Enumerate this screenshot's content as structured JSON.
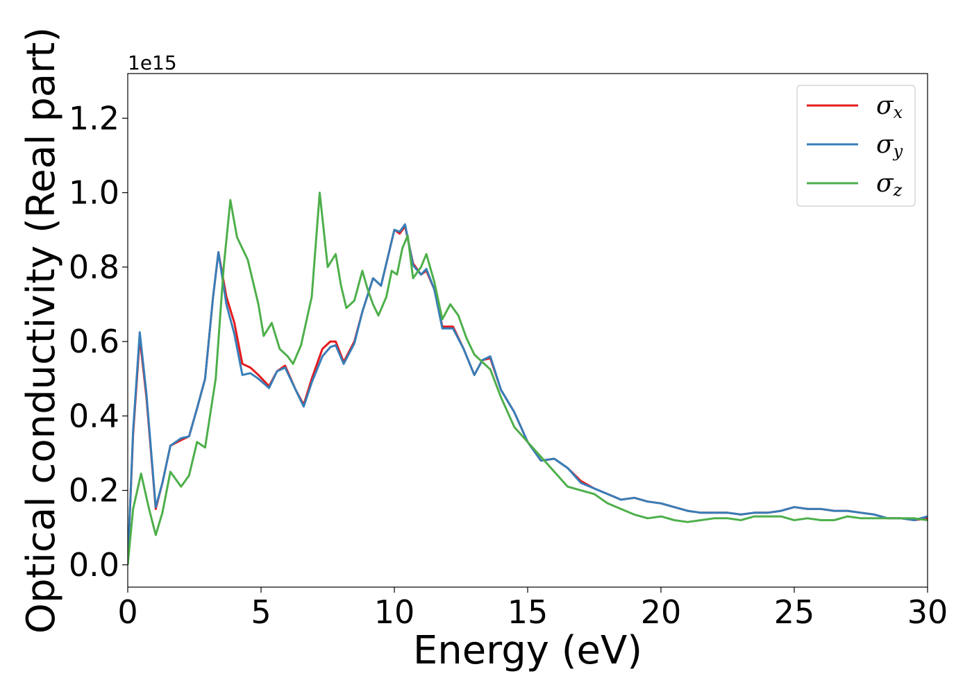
{
  "chart_data": {
    "type": "line",
    "title": "",
    "xlabel": "Energy (eV)",
    "ylabel": "Optical conductivity (Real part)",
    "y_offset_label": "1e15",
    "xlim": [
      0,
      30
    ],
    "ylim": [
      -0.06,
      1.32
    ],
    "xticks": [
      0,
      5,
      10,
      15,
      20,
      25,
      30
    ],
    "xtick_labels": [
      "0",
      "5",
      "10",
      "15",
      "20",
      "25",
      "30"
    ],
    "yticks": [
      0.0,
      0.2,
      0.4,
      0.6,
      0.8,
      1.0,
      1.2
    ],
    "ytick_labels": [
      "0.0",
      "0.2",
      "0.4",
      "0.6",
      "0.8",
      "1.0",
      "1.2"
    ],
    "grid": false,
    "legend_position": "top-right",
    "series": [
      {
        "name": "σx",
        "legend_symbol": "σ",
        "legend_sub": "x",
        "color": "#e41a1c",
        "points": [
          [
            0,
            0.0
          ],
          [
            0.2,
            0.35
          ],
          [
            0.45,
            0.61
          ],
          [
            0.7,
            0.45
          ],
          [
            1.05,
            0.15
          ],
          [
            1.3,
            0.22
          ],
          [
            1.6,
            0.32
          ],
          [
            2.0,
            0.335
          ],
          [
            2.3,
            0.345
          ],
          [
            2.6,
            0.42
          ],
          [
            2.9,
            0.5
          ],
          [
            3.2,
            0.72
          ],
          [
            3.4,
            0.84
          ],
          [
            3.7,
            0.72
          ],
          [
            4.0,
            0.65
          ],
          [
            4.3,
            0.54
          ],
          [
            4.6,
            0.53
          ],
          [
            4.9,
            0.51
          ],
          [
            5.3,
            0.48
          ],
          [
            5.6,
            0.52
          ],
          [
            5.9,
            0.535
          ],
          [
            6.3,
            0.47
          ],
          [
            6.6,
            0.43
          ],
          [
            6.9,
            0.5
          ],
          [
            7.3,
            0.58
          ],
          [
            7.6,
            0.6
          ],
          [
            7.8,
            0.6
          ],
          [
            8.1,
            0.545
          ],
          [
            8.5,
            0.6
          ],
          [
            8.8,
            0.68
          ],
          [
            9.2,
            0.77
          ],
          [
            9.5,
            0.75
          ],
          [
            10.0,
            0.9
          ],
          [
            10.2,
            0.89
          ],
          [
            10.4,
            0.91
          ],
          [
            10.7,
            0.81
          ],
          [
            11.0,
            0.78
          ],
          [
            11.2,
            0.79
          ],
          [
            11.5,
            0.74
          ],
          [
            11.8,
            0.64
          ],
          [
            12.2,
            0.64
          ],
          [
            12.6,
            0.58
          ],
          [
            13.0,
            0.51
          ],
          [
            13.3,
            0.55
          ],
          [
            13.6,
            0.555
          ],
          [
            14.0,
            0.47
          ],
          [
            14.5,
            0.41
          ],
          [
            15.0,
            0.33
          ],
          [
            15.5,
            0.28
          ],
          [
            16.0,
            0.285
          ],
          [
            16.5,
            0.26
          ],
          [
            17.0,
            0.225
          ],
          [
            17.5,
            0.205
          ],
          [
            18.0,
            0.19
          ],
          [
            18.5,
            0.175
          ],
          [
            19.0,
            0.18
          ],
          [
            19.5,
            0.17
          ],
          [
            20.0,
            0.165
          ],
          [
            20.5,
            0.155
          ],
          [
            21.0,
            0.145
          ],
          [
            21.5,
            0.14
          ],
          [
            22.0,
            0.14
          ],
          [
            22.5,
            0.14
          ],
          [
            23.0,
            0.135
          ],
          [
            23.5,
            0.14
          ],
          [
            24.0,
            0.14
          ],
          [
            24.5,
            0.145
          ],
          [
            25.0,
            0.155
          ],
          [
            25.5,
            0.15
          ],
          [
            26.0,
            0.15
          ],
          [
            26.5,
            0.145
          ],
          [
            27.0,
            0.145
          ],
          [
            27.5,
            0.14
          ],
          [
            28.0,
            0.135
          ],
          [
            28.5,
            0.125
          ],
          [
            29.0,
            0.125
          ],
          [
            29.5,
            0.12
          ],
          [
            30.0,
            0.125
          ]
        ]
      },
      {
        "name": "σy",
        "legend_symbol": "σ",
        "legend_sub": "y",
        "color": "#377eb8",
        "points": [
          [
            0,
            0.0
          ],
          [
            0.2,
            0.36
          ],
          [
            0.45,
            0.625
          ],
          [
            0.7,
            0.46
          ],
          [
            1.05,
            0.155
          ],
          [
            1.3,
            0.22
          ],
          [
            1.6,
            0.32
          ],
          [
            2.0,
            0.34
          ],
          [
            2.3,
            0.345
          ],
          [
            2.6,
            0.42
          ],
          [
            2.9,
            0.5
          ],
          [
            3.2,
            0.72
          ],
          [
            3.4,
            0.84
          ],
          [
            3.7,
            0.7
          ],
          [
            4.0,
            0.62
          ],
          [
            4.3,
            0.51
          ],
          [
            4.6,
            0.515
          ],
          [
            4.9,
            0.5
          ],
          [
            5.3,
            0.475
          ],
          [
            5.6,
            0.52
          ],
          [
            5.9,
            0.53
          ],
          [
            6.3,
            0.47
          ],
          [
            6.6,
            0.425
          ],
          [
            6.9,
            0.49
          ],
          [
            7.3,
            0.56
          ],
          [
            7.6,
            0.585
          ],
          [
            7.8,
            0.59
          ],
          [
            8.1,
            0.54
          ],
          [
            8.5,
            0.595
          ],
          [
            8.8,
            0.68
          ],
          [
            9.2,
            0.77
          ],
          [
            9.5,
            0.75
          ],
          [
            10.0,
            0.9
          ],
          [
            10.2,
            0.895
          ],
          [
            10.4,
            0.915
          ],
          [
            10.7,
            0.805
          ],
          [
            11.0,
            0.78
          ],
          [
            11.2,
            0.795
          ],
          [
            11.5,
            0.74
          ],
          [
            11.8,
            0.635
          ],
          [
            12.2,
            0.635
          ],
          [
            12.6,
            0.58
          ],
          [
            13.0,
            0.51
          ],
          [
            13.3,
            0.55
          ],
          [
            13.6,
            0.56
          ],
          [
            14.0,
            0.47
          ],
          [
            14.5,
            0.41
          ],
          [
            15.0,
            0.33
          ],
          [
            15.5,
            0.28
          ],
          [
            16.0,
            0.285
          ],
          [
            16.5,
            0.26
          ],
          [
            17.0,
            0.22
          ],
          [
            17.5,
            0.205
          ],
          [
            18.0,
            0.19
          ],
          [
            18.5,
            0.175
          ],
          [
            19.0,
            0.18
          ],
          [
            19.5,
            0.17
          ],
          [
            20.0,
            0.165
          ],
          [
            20.5,
            0.155
          ],
          [
            21.0,
            0.145
          ],
          [
            21.5,
            0.14
          ],
          [
            22.0,
            0.14
          ],
          [
            22.5,
            0.14
          ],
          [
            23.0,
            0.135
          ],
          [
            23.5,
            0.14
          ],
          [
            24.0,
            0.14
          ],
          [
            24.5,
            0.145
          ],
          [
            25.0,
            0.155
          ],
          [
            25.5,
            0.15
          ],
          [
            26.0,
            0.15
          ],
          [
            26.5,
            0.145
          ],
          [
            27.0,
            0.145
          ],
          [
            27.5,
            0.14
          ],
          [
            28.0,
            0.135
          ],
          [
            28.5,
            0.125
          ],
          [
            29.0,
            0.125
          ],
          [
            29.5,
            0.12
          ],
          [
            30.0,
            0.13
          ]
        ]
      },
      {
        "name": "σz",
        "legend_symbol": "σ",
        "legend_sub": "z",
        "color": "#4daf4a",
        "points": [
          [
            0,
            0.0
          ],
          [
            0.2,
            0.15
          ],
          [
            0.5,
            0.245
          ],
          [
            0.8,
            0.15
          ],
          [
            1.05,
            0.08
          ],
          [
            1.3,
            0.14
          ],
          [
            1.6,
            0.25
          ],
          [
            2.0,
            0.21
          ],
          [
            2.3,
            0.24
          ],
          [
            2.6,
            0.33
          ],
          [
            2.9,
            0.315
          ],
          [
            3.3,
            0.5
          ],
          [
            3.6,
            0.8
          ],
          [
            3.85,
            0.98
          ],
          [
            4.1,
            0.88
          ],
          [
            4.5,
            0.82
          ],
          [
            4.9,
            0.7
          ],
          [
            5.1,
            0.615
          ],
          [
            5.4,
            0.65
          ],
          [
            5.7,
            0.58
          ],
          [
            6.0,
            0.56
          ],
          [
            6.2,
            0.54
          ],
          [
            6.5,
            0.59
          ],
          [
            6.9,
            0.72
          ],
          [
            7.2,
            1.0
          ],
          [
            7.5,
            0.8
          ],
          [
            7.8,
            0.835
          ],
          [
            8.0,
            0.75
          ],
          [
            8.2,
            0.69
          ],
          [
            8.5,
            0.71
          ],
          [
            8.8,
            0.79
          ],
          [
            9.0,
            0.74
          ],
          [
            9.2,
            0.7
          ],
          [
            9.4,
            0.67
          ],
          [
            9.7,
            0.72
          ],
          [
            9.9,
            0.79
          ],
          [
            10.1,
            0.78
          ],
          [
            10.3,
            0.85
          ],
          [
            10.5,
            0.885
          ],
          [
            10.7,
            0.77
          ],
          [
            11.0,
            0.8
          ],
          [
            11.2,
            0.835
          ],
          [
            11.5,
            0.76
          ],
          [
            11.8,
            0.66
          ],
          [
            12.1,
            0.7
          ],
          [
            12.4,
            0.67
          ],
          [
            12.7,
            0.61
          ],
          [
            13.0,
            0.565
          ],
          [
            13.3,
            0.545
          ],
          [
            13.6,
            0.525
          ],
          [
            14.0,
            0.45
          ],
          [
            14.5,
            0.37
          ],
          [
            15.0,
            0.33
          ],
          [
            15.5,
            0.29
          ],
          [
            16.0,
            0.25
          ],
          [
            16.5,
            0.21
          ],
          [
            17.0,
            0.2
          ],
          [
            17.5,
            0.19
          ],
          [
            18.0,
            0.165
          ],
          [
            18.5,
            0.15
          ],
          [
            19.0,
            0.135
          ],
          [
            19.5,
            0.125
          ],
          [
            20.0,
            0.13
          ],
          [
            20.5,
            0.12
          ],
          [
            21.0,
            0.115
          ],
          [
            21.5,
            0.12
          ],
          [
            22.0,
            0.125
          ],
          [
            22.5,
            0.125
          ],
          [
            23.0,
            0.12
          ],
          [
            23.5,
            0.13
          ],
          [
            24.0,
            0.13
          ],
          [
            24.5,
            0.13
          ],
          [
            25.0,
            0.12
          ],
          [
            25.5,
            0.125
          ],
          [
            26.0,
            0.12
          ],
          [
            26.5,
            0.12
          ],
          [
            27.0,
            0.13
          ],
          [
            27.5,
            0.125
          ],
          [
            28.0,
            0.125
          ],
          [
            28.5,
            0.125
          ],
          [
            29.0,
            0.125
          ],
          [
            29.5,
            0.125
          ],
          [
            30.0,
            0.12
          ]
        ]
      }
    ]
  }
}
